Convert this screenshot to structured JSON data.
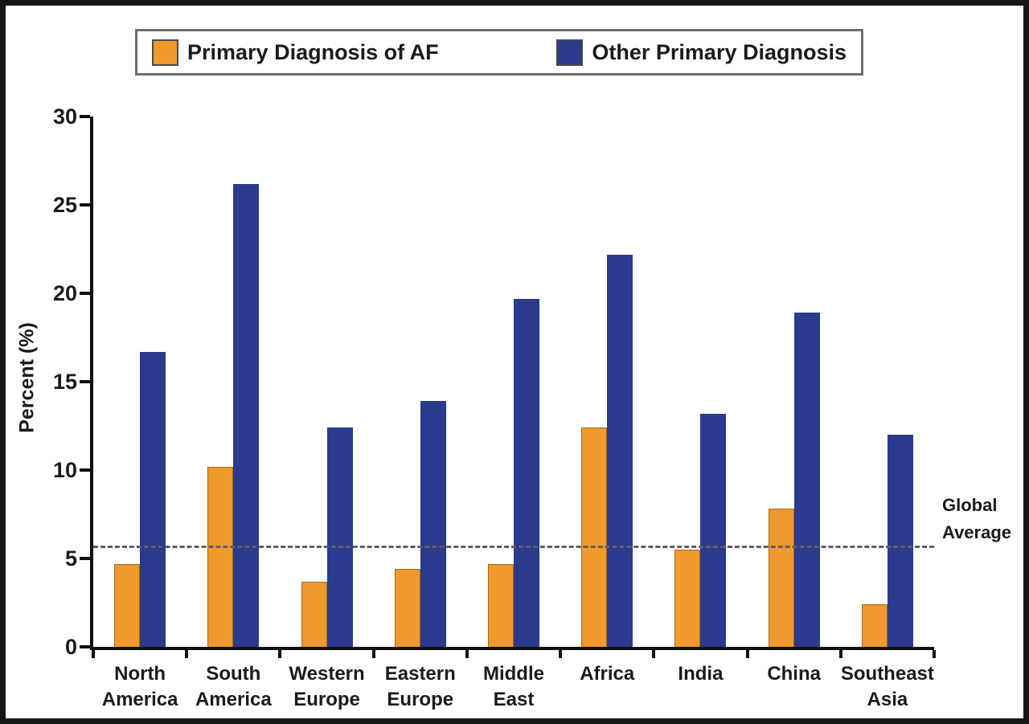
{
  "chart_data": {
    "type": "bar",
    "title": "",
    "ylabel": "Percent (%)",
    "ylim": [
      0,
      30
    ],
    "yticks": [
      0,
      5,
      10,
      15,
      20,
      25,
      30
    ],
    "categories": [
      "North\nAmerica",
      "South\nAmerica",
      "Western\nEurope",
      "Eastern\nEurope",
      "Middle\nEast",
      "Africa",
      "India",
      "China",
      "Southeast\nAsia"
    ],
    "series": [
      {
        "name": "Primary Diagnosis of AF",
        "color": "#F0992F",
        "values": [
          4.7,
          10.2,
          3.7,
          4.4,
          4.7,
          12.4,
          5.5,
          7.8,
          2.4
        ]
      },
      {
        "name": "Other Primary Diagnosis",
        "color": "#2A3A8C",
        "values": [
          16.7,
          26.2,
          12.4,
          13.9,
          19.7,
          22.2,
          13.2,
          18.9,
          12.0
        ]
      }
    ],
    "reference_line": {
      "label": "Global\nAverage",
      "value": 5.6,
      "color": "#5f5f5f"
    },
    "legend_position": "top",
    "grid": false
  }
}
